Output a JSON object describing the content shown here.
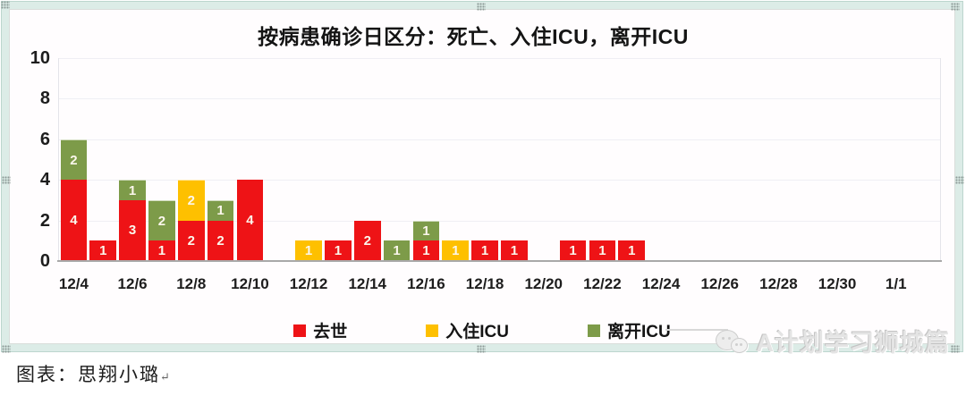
{
  "chart_data": {
    "type": "bar",
    "stacked": true,
    "title": "按病患确诊日区分：死亡、入住ICU，离开ICU",
    "xlabel": "",
    "ylabel": "",
    "ylim": [
      0,
      10
    ],
    "yticks": [
      0,
      2,
      4,
      6,
      8,
      10
    ],
    "grid": true,
    "legend_position": "bottom",
    "categories": [
      "12/4",
      "12/5",
      "12/6",
      "12/7",
      "12/8",
      "12/9",
      "12/10",
      "12/11",
      "12/12",
      "12/13",
      "12/14",
      "12/15",
      "12/16",
      "12/17",
      "12/18",
      "12/19",
      "12/20",
      "12/21",
      "12/22",
      "12/23",
      "12/24",
      "12/25",
      "12/26",
      "12/27",
      "12/28",
      "12/29",
      "12/30",
      "12/31",
      "1/1"
    ],
    "tick_labels": [
      "12/4",
      "12/6",
      "12/8",
      "12/10",
      "12/12",
      "12/14",
      "12/16",
      "12/18",
      "12/20",
      "12/22",
      "12/24",
      "12/26",
      "12/28",
      "12/30",
      "1/1"
    ],
    "series": [
      {
        "key": "deaths",
        "name": "去世",
        "color": "#ee1316"
      },
      {
        "key": "icu_in",
        "name": "入住ICU",
        "color": "#fec000"
      },
      {
        "key": "icu_out",
        "name": "离开ICU",
        "color": "#7d9b49"
      }
    ],
    "values": {
      "deaths": [
        4,
        1,
        3,
        1,
        2,
        2,
        4,
        0,
        0,
        1,
        2,
        0,
        1,
        0,
        1,
        1,
        0,
        1,
        1,
        1,
        0,
        0,
        0,
        0,
        0,
        0,
        0,
        0,
        0
      ],
      "icu_in": [
        0,
        0,
        0,
        0,
        2,
        0,
        0,
        0,
        1,
        0,
        0,
        0,
        0,
        1,
        0,
        0,
        0,
        0,
        0,
        0,
        0,
        0,
        0,
        0,
        0,
        0,
        0,
        0,
        0
      ],
      "icu_out": [
        2,
        0,
        1,
        2,
        0,
        1,
        0,
        0,
        0,
        0,
        0,
        1,
        1,
        0,
        0,
        0,
        0,
        0,
        0,
        0,
        0,
        0,
        0,
        0,
        0,
        0,
        0,
        0,
        0
      ]
    },
    "axis_color": "#a9a9a9",
    "gridline_color": "#efeff4"
  },
  "caption": {
    "text": "图表：思翔小璐",
    "return_mark": "↵"
  },
  "watermark": {
    "text": "A计划学习狮城篇",
    "icon": "wechat-icon"
  }
}
